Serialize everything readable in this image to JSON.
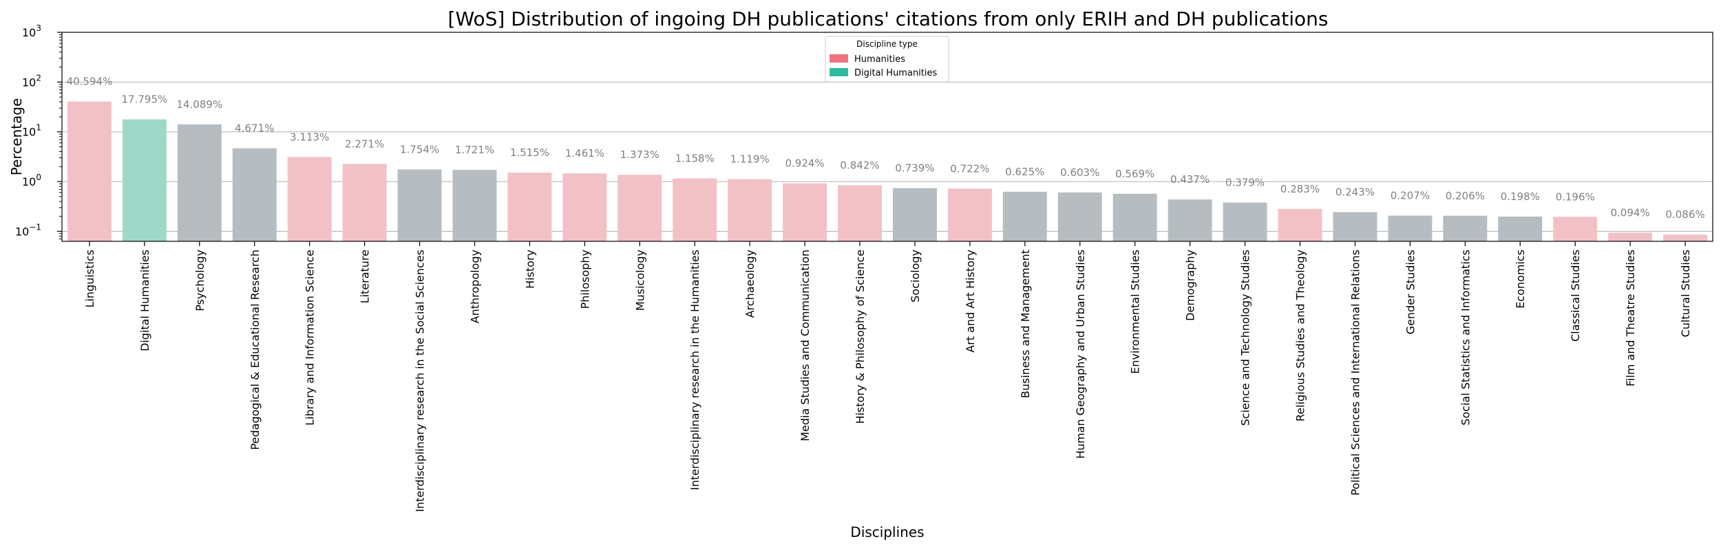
{
  "chart_data": {
    "type": "bar",
    "title": "[WoS] Distribution of ingoing DH publications' citations from only ERIH and DH publications",
    "xlabel": "Disciplines",
    "ylabel": "Percentage",
    "yscale": "log",
    "ylim": [
      0.063,
      1000
    ],
    "yticks": [
      {
        "value": 0.1,
        "base": "10",
        "exp": "−1"
      },
      {
        "value": 1,
        "base": "10",
        "exp": "0"
      },
      {
        "value": 10,
        "base": "10",
        "exp": "1"
      },
      {
        "value": 100,
        "base": "10",
        "exp": "2"
      },
      {
        "value": 1000,
        "base": "10",
        "exp": "3"
      }
    ],
    "grid": "y-major",
    "legend": {
      "title": "Discipline type",
      "placement": "top-center",
      "entries": [
        {
          "label": "Humanities",
          "color": "#f2727f"
        },
        {
          "label": "Digital Humanities",
          "color": "#2ebaa0"
        }
      ]
    },
    "colors": {
      "Humanities": "#f2c1c6",
      "Digital Humanities": "#a0d8c8",
      "Other": "#b6bcc0"
    },
    "categories": [
      "Linguistics",
      "Digital Humanities",
      "Psychology",
      "Pedagogical & Educational Research",
      "Library and Information Science",
      "Literature",
      "Interdisciplinary research in the Social Sciences",
      "Anthropology",
      "History",
      "Philosophy",
      "Musicology",
      "Interdisciplinary research in the Humanities",
      "Archaeology",
      "Media Studies and Communication",
      "History & Philosophy of Science",
      "Sociology",
      "Art and Art History",
      "Business and Management",
      "Human Geography and Urban Studies",
      "Environmental Studies",
      "Demography",
      "Science and Technology Studies",
      "Religious Studies and Theology",
      "Political Sciences and International Relations",
      "Gender Studies",
      "Social Statistics and Informatics",
      "Economics",
      "Classical Studies",
      "Film and Theatre Studies",
      "Cultural Studies"
    ],
    "values": [
      40.594,
      17.795,
      14.089,
      4.671,
      3.113,
      2.271,
      1.754,
      1.721,
      1.515,
      1.461,
      1.373,
      1.158,
      1.119,
      0.924,
      0.842,
      0.739,
      0.722,
      0.625,
      0.603,
      0.569,
      0.437,
      0.379,
      0.283,
      0.243,
      0.207,
      0.206,
      0.198,
      0.196,
      0.094,
      0.086
    ],
    "value_labels": [
      "40.594%",
      "17.795%",
      "14.089%",
      "4.671%",
      "3.113%",
      "2.271%",
      "1.754%",
      "1.721%",
      "1.515%",
      "1.461%",
      "1.373%",
      "1.158%",
      "1.119%",
      "0.924%",
      "0.842%",
      "0.739%",
      "0.722%",
      "0.625%",
      "0.603%",
      "0.569%",
      "0.437%",
      "0.379%",
      "0.283%",
      "0.243%",
      "0.207%",
      "0.206%",
      "0.198%",
      "0.196%",
      "0.094%",
      "0.086%"
    ],
    "bar_type": [
      "Humanities",
      "Digital Humanities",
      "Other",
      "Other",
      "Humanities",
      "Humanities",
      "Other",
      "Other",
      "Humanities",
      "Humanities",
      "Humanities",
      "Humanities",
      "Humanities",
      "Humanities",
      "Humanities",
      "Other",
      "Humanities",
      "Other",
      "Other",
      "Other",
      "Other",
      "Other",
      "Humanities",
      "Other",
      "Other",
      "Other",
      "Other",
      "Humanities",
      "Humanities",
      "Humanities"
    ]
  }
}
